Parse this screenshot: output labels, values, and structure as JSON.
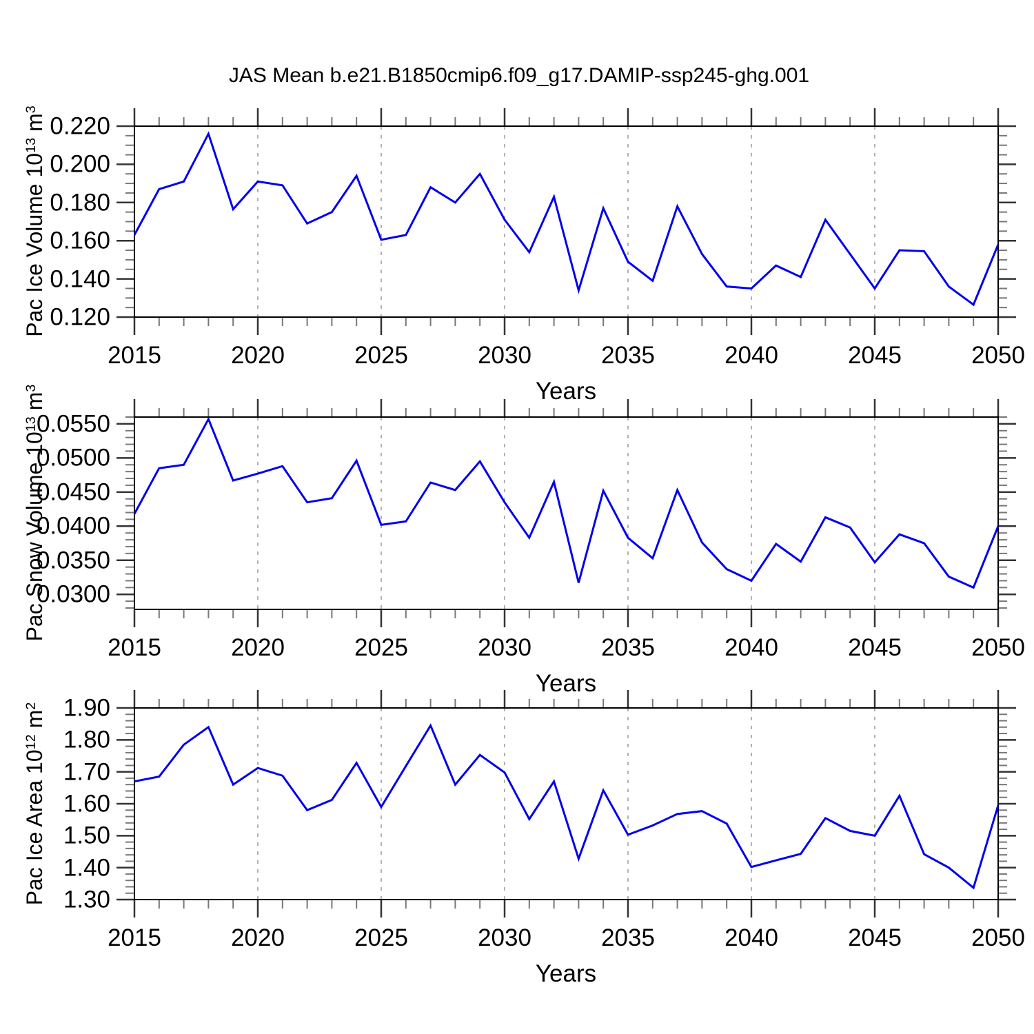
{
  "title": "JAS Mean b.e21.B1850cmip6.f09_g17.DAMIP-ssp245-ghg.001",
  "colors": {
    "line": "#0000ee",
    "frame": "#000000",
    "tick_major": "#333333",
    "tick_minor": "#777777",
    "grid": "#999999"
  },
  "x_axis": {
    "label": "Years",
    "range": [
      2015,
      2050
    ],
    "ticks": [
      "2015",
      "2020",
      "2025",
      "2030",
      "2035",
      "2040",
      "2045",
      "2050"
    ],
    "gridlines": [
      2020,
      2025,
      2030,
      2035,
      2040,
      2045
    ],
    "minor_step": 1
  },
  "chart_data": [
    {
      "type": "line",
      "ylabel": "Pac Ice Volume 10^13 m^3",
      "ylabel_parts": {
        "base1": "Pac Ice Volume 10",
        "sup1": "13",
        "base2": " m",
        "sup2": "3"
      },
      "x": [
        2015,
        2016,
        2017,
        2018,
        2019,
        2020,
        2021,
        2022,
        2023,
        2024,
        2025,
        2026,
        2027,
        2028,
        2029,
        2030,
        2031,
        2032,
        2033,
        2034,
        2035,
        2036,
        2037,
        2038,
        2039,
        2040,
        2041,
        2042,
        2043,
        2044,
        2045,
        2046,
        2047,
        2048,
        2049,
        2050
      ],
      "values": [
        0.163,
        0.187,
        0.191,
        0.216,
        0.1765,
        0.191,
        0.189,
        0.169,
        0.175,
        0.194,
        0.1605,
        0.163,
        0.188,
        0.18,
        0.195,
        0.171,
        0.154,
        0.183,
        0.134,
        0.177,
        0.149,
        0.139,
        0.178,
        0.153,
        0.136,
        0.135,
        0.147,
        0.141,
        0.171,
        0.153,
        0.135,
        0.155,
        0.1545,
        0.136,
        0.1265,
        0.158
      ],
      "ylim": [
        0.12,
        0.22
      ],
      "ytick_values": [
        0.12,
        0.14,
        0.16,
        0.18,
        0.2,
        0.22
      ],
      "ytick_labels": [
        "0.120",
        "0.140",
        "0.160",
        "0.180",
        "0.200",
        "0.220"
      ],
      "y_minor_start": 0.12,
      "y_minor_step": 0.005,
      "grid": "vertical-dashed",
      "legend": "none"
    },
    {
      "type": "line",
      "ylabel": "Pac Snow Volume 10^13 m^3",
      "ylabel_parts": {
        "base1": "Pac Snow Volume 10",
        "sup1": "13",
        "base2": " m",
        "sup2": "3"
      },
      "x": [
        2015,
        2016,
        2017,
        2018,
        2019,
        2020,
        2021,
        2022,
        2023,
        2024,
        2025,
        2026,
        2027,
        2028,
        2029,
        2030,
        2031,
        2032,
        2033,
        2034,
        2035,
        2036,
        2037,
        2038,
        2039,
        2040,
        2041,
        2042,
        2043,
        2044,
        2045,
        2046,
        2047,
        2048,
        2049,
        2050
      ],
      "values": [
        0.0418,
        0.0485,
        0.049,
        0.0557,
        0.0467,
        0.0477,
        0.0488,
        0.0435,
        0.0441,
        0.0496,
        0.0402,
        0.0407,
        0.0464,
        0.0453,
        0.0495,
        0.0435,
        0.0383,
        0.0465,
        0.0317,
        0.0452,
        0.0383,
        0.0353,
        0.0453,
        0.0376,
        0.0337,
        0.032,
        0.0374,
        0.0348,
        0.0413,
        0.0398,
        0.0347,
        0.0388,
        0.0375,
        0.0326,
        0.031,
        0.04
      ],
      "ylim": [
        0.0278,
        0.056
      ],
      "ytick_values": [
        0.03,
        0.035,
        0.04,
        0.045,
        0.05,
        0.055
      ],
      "ytick_labels": [
        "0.0300",
        "0.0350",
        "0.0400",
        "0.0450",
        "0.0500",
        "0.0550"
      ],
      "y_minor_start": 0.028,
      "y_minor_step": 0.001,
      "grid": "vertical-dashed",
      "legend": "none"
    },
    {
      "type": "line",
      "ylabel": "Pac Ice Area 10^12 m^2",
      "ylabel_parts": {
        "base1": "Pac Ice Area 10",
        "sup1": "12",
        "base2": " m",
        "sup2": "2"
      },
      "x": [
        2015,
        2016,
        2017,
        2018,
        2019,
        2020,
        2021,
        2022,
        2023,
        2024,
        2025,
        2026,
        2027,
        2028,
        2029,
        2030,
        2031,
        2032,
        2033,
        2034,
        2035,
        2036,
        2037,
        2038,
        2039,
        2040,
        2041,
        2042,
        2043,
        2044,
        2045,
        2046,
        2047,
        2048,
        2049,
        2050
      ],
      "values": [
        1.67,
        1.685,
        1.785,
        1.84,
        1.66,
        1.712,
        1.688,
        1.58,
        1.612,
        1.728,
        1.59,
        1.718,
        1.845,
        1.66,
        1.753,
        1.698,
        1.552,
        1.67,
        1.428,
        1.642,
        1.503,
        1.532,
        1.568,
        1.577,
        1.538,
        1.402,
        1.423,
        1.443,
        1.555,
        1.515,
        1.5,
        1.625,
        1.442,
        1.4,
        1.337,
        1.595
      ],
      "ylim": [
        1.3,
        1.9
      ],
      "ytick_values": [
        1.3,
        1.4,
        1.5,
        1.6,
        1.7,
        1.8,
        1.9
      ],
      "ytick_labels": [
        "1.30",
        "1.40",
        "1.50",
        "1.60",
        "1.70",
        "1.80",
        "1.90"
      ],
      "y_minor_start": 1.3,
      "y_minor_step": 0.02,
      "grid": "vertical-dashed",
      "legend": "none"
    }
  ]
}
